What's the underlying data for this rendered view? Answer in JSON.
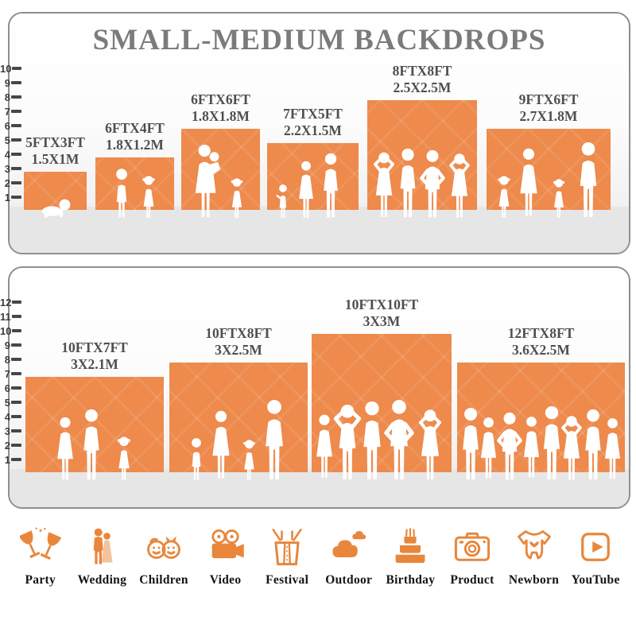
{
  "title": "SMALL-MEDIUM BACKDROPS",
  "panels": {
    "small_medium": {
      "ruler_ticks": [
        "1",
        "2",
        "3",
        "4",
        "5",
        "6",
        "7",
        "8",
        "9",
        "10"
      ],
      "backdrops": [
        {
          "size_ft": "5FTX3FT",
          "size_m": "1.5X1M",
          "w_ft": 5,
          "h_ft": 3
        },
        {
          "size_ft": "6FTX4FT",
          "size_m": "1.8X1.2M",
          "w_ft": 6,
          "h_ft": 4
        },
        {
          "size_ft": "6FTX6FT",
          "size_m": "1.8X1.8M",
          "w_ft": 6,
          "h_ft": 6
        },
        {
          "size_ft": "7FTX5FT",
          "size_m": "2.2X1.5M",
          "w_ft": 7,
          "h_ft": 5
        },
        {
          "size_ft": "8FTX8FT",
          "size_m": "2.5X2.5M",
          "w_ft": 8,
          "h_ft": 8
        },
        {
          "size_ft": "9FTX6FT",
          "size_m": "2.7X1.8M",
          "w_ft": 9,
          "h_ft": 6
        }
      ]
    },
    "large": {
      "ruler_ticks": [
        "1",
        "2",
        "3",
        "4",
        "5",
        "6",
        "7",
        "8",
        "9",
        "10",
        "11",
        "12"
      ],
      "backdrops": [
        {
          "size_ft": "10FTX7FT",
          "size_m": "3X2.1M",
          "w_ft": 10,
          "h_ft": 7
        },
        {
          "size_ft": "10FTX8FT",
          "size_m": "3X2.5M",
          "w_ft": 10,
          "h_ft": 8
        },
        {
          "size_ft": "10FTX10FT",
          "size_m": "3X3M",
          "w_ft": 10,
          "h_ft": 10
        },
        {
          "size_ft": "12FTX8FT",
          "size_m": "3.6X2.5M",
          "w_ft": 12,
          "h_ft": 8
        }
      ]
    }
  },
  "categories": [
    {
      "label": "Party",
      "icon": "party-icon"
    },
    {
      "label": "Wedding",
      "icon": "wedding-icon"
    },
    {
      "label": "Children",
      "icon": "children-icon"
    },
    {
      "label": "Video",
      "icon": "video-icon"
    },
    {
      "label": "Festival",
      "icon": "festival-icon"
    },
    {
      "label": "Outdoor",
      "icon": "outdoor-icon"
    },
    {
      "label": "Birthday",
      "icon": "birthday-icon"
    },
    {
      "label": "Product",
      "icon": "product-icon"
    },
    {
      "label": "Newborn",
      "icon": "newborn-icon"
    },
    {
      "label": "YouTube",
      "icon": "youtube-icon"
    }
  ],
  "colors": {
    "backdrop": "#ED8A4C",
    "icon": "#E8873C",
    "title": "#7b7b7b",
    "label": "#4f4f4f",
    "floor": "#e6e6e6"
  }
}
